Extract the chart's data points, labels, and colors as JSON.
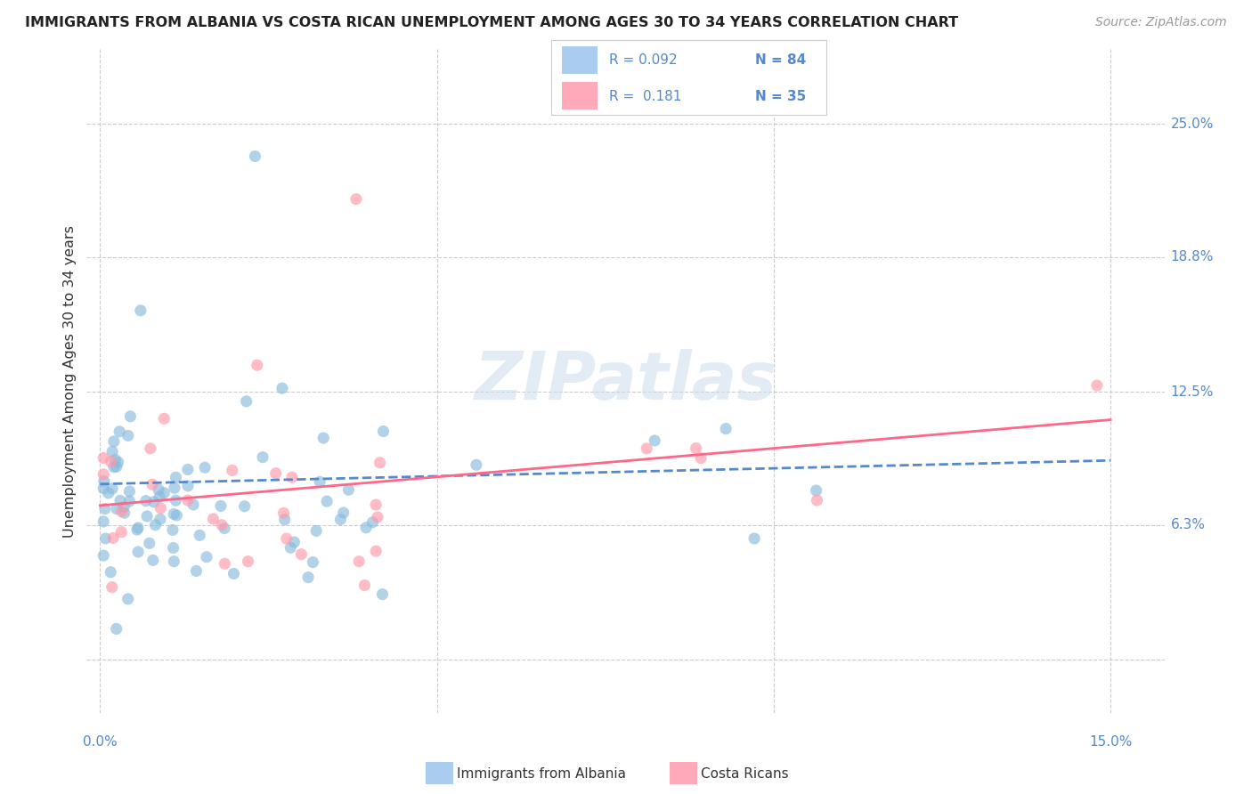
{
  "title": "IMMIGRANTS FROM ALBANIA VS COSTA RICAN UNEMPLOYMENT AMONG AGES 30 TO 34 YEARS CORRELATION CHART",
  "source": "Source: ZipAtlas.com",
  "ylabel": "Unemployment Among Ages 30 to 34 years",
  "watermark": "ZIPatlas",
  "color_blue": "#88BBDD",
  "color_pink": "#FF99AA",
  "color_blue_legend": "#AACCEE",
  "color_pink_legend": "#FFAABB",
  "color_trend_blue": "#5588CC",
  "color_trend_pink": "#FF6688",
  "color_right_labels": "#5588CC",
  "color_grid": "#CCCCCC",
  "xlim": [
    -0.002,
    0.158
  ],
  "ylim": [
    -0.025,
    0.285
  ],
  "ytick_vals": [
    0.0,
    0.063,
    0.125,
    0.188,
    0.25
  ],
  "ytick_labels": [
    "",
    "6.3%",
    "12.5%",
    "18.8%",
    "25.0%"
  ],
  "xtick_vals": [
    0.0,
    0.05,
    0.1,
    0.15
  ],
  "blue_trend_x": [
    0.0,
    0.15
  ],
  "blue_trend_y": [
    0.082,
    0.093
  ],
  "pink_trend_x": [
    0.0,
    0.15
  ],
  "pink_trend_y": [
    0.072,
    0.112
  ],
  "legend_r1": "R = 0.092",
  "legend_n1": "N = 84",
  "legend_r2": "R =  0.181",
  "legend_n2": "N = 35"
}
